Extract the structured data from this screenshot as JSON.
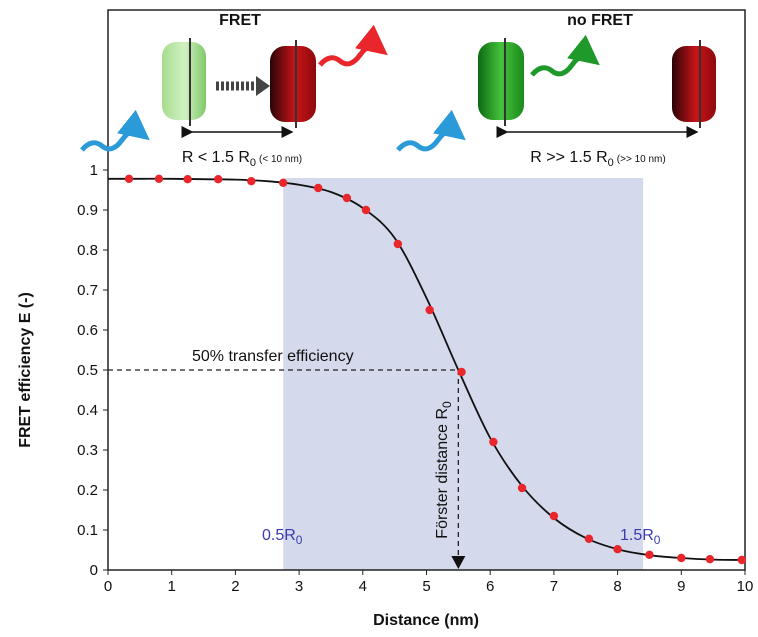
{
  "chart_data": {
    "type": "scatter",
    "xlabel": "Distance (nm)",
    "ylabel": "FRET efficiency  E  (-)",
    "xlim": [
      0,
      10
    ],
    "ylim": [
      0,
      1
    ],
    "xticks": [
      0,
      1,
      2,
      3,
      4,
      5,
      6,
      7,
      8,
      9,
      10
    ],
    "yticks": [
      0,
      0.1,
      0.2,
      0.3,
      0.4,
      0.5,
      0.6,
      0.7,
      0.8,
      0.9,
      1
    ],
    "shade": [
      2.75,
      8.4
    ],
    "shade_color": "#d4d9ec",
    "reference": {
      "x": 5.5,
      "y": 0.5
    },
    "series": [
      {
        "color": "#e8262b",
        "x": [
          0.33,
          0.8,
          1.25,
          1.73,
          2.25,
          2.75,
          3.3,
          3.75,
          4.05,
          4.55,
          5.05,
          5.55,
          6.05,
          6.5,
          7.0,
          7.55,
          8.0,
          8.5,
          9.0,
          9.45,
          9.95
        ],
        "values": [
          0.978,
          0.978,
          0.977,
          0.977,
          0.972,
          0.968,
          0.955,
          0.93,
          0.9,
          0.815,
          0.65,
          0.495,
          0.32,
          0.205,
          0.135,
          0.078,
          0.052,
          0.038,
          0.03,
          0.027,
          0.025
        ]
      },
      {
        "type": "line",
        "color": "#111111",
        "x": [
          0,
          0.5,
          1,
          1.5,
          2,
          2.5,
          3,
          3.5,
          4,
          4.5,
          5,
          5.5,
          6,
          6.5,
          7,
          7.5,
          8,
          8.5,
          9,
          9.5,
          10
        ],
        "values": [
          0.978,
          0.978,
          0.978,
          0.977,
          0.976,
          0.972,
          0.963,
          0.945,
          0.905,
          0.83,
          0.68,
          0.5,
          0.33,
          0.21,
          0.13,
          0.08,
          0.052,
          0.037,
          0.03,
          0.026,
          0.025
        ]
      }
    ],
    "annotations": [
      {
        "text": "50% transfer efficiency"
      },
      {
        "text": "Förster distance R",
        "sub": "0"
      },
      {
        "text": "0.5R",
        "sub": "0"
      },
      {
        "text": "1.5R",
        "sub": "0"
      }
    ],
    "illustration": {
      "left_label": "FRET",
      "right_label": "no FRET",
      "left_distance": {
        "text": "R < 1.5 R",
        "sub": "0",
        "note": "(< 10 nm)"
      },
      "right_distance": {
        "text": "R >> 1.5 R",
        "sub": "0",
        "note": "(>> 10 nm)"
      }
    }
  }
}
